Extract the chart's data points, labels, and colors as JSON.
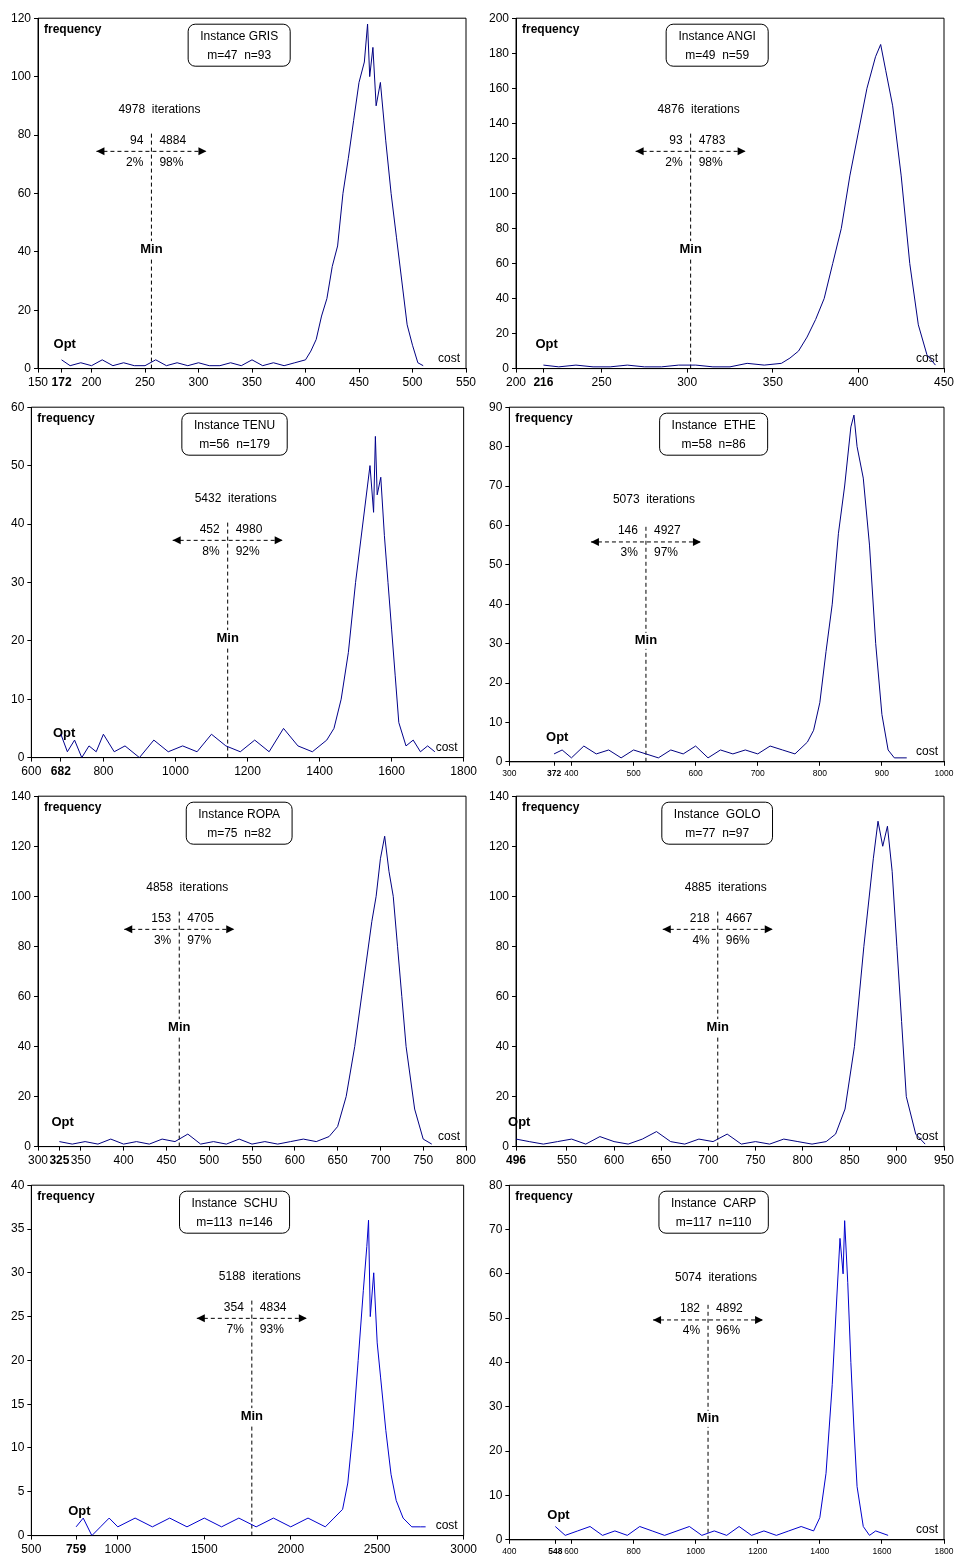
{
  "chart_data": [
    {
      "type": "line",
      "title": "Instance GRIS",
      "subtitle": "m=47  n=93",
      "xlabel": "cost",
      "ylabel": "frequency",
      "color": "#000080",
      "grid": false,
      "legend": false,
      "marker": "none",
      "line_style": "solid",
      "xlim": [
        150,
        550
      ],
      "xticks": [
        150,
        172,
        200,
        250,
        300,
        350,
        400,
        450,
        500,
        550
      ],
      "ylim": [
        0,
        120
      ],
      "yticks": [
        0,
        20,
        40,
        60,
        80,
        100,
        120
      ],
      "x": [
        172,
        180,
        190,
        200,
        210,
        220,
        230,
        240,
        250,
        260,
        270,
        280,
        290,
        300,
        310,
        320,
        330,
        340,
        350,
        360,
        370,
        380,
        390,
        400,
        405,
        410,
        415,
        420,
        425,
        430,
        435,
        440,
        445,
        450,
        455,
        458,
        460,
        463,
        466,
        470,
        475,
        480,
        485,
        490,
        495,
        500,
        505,
        510
      ],
      "values": [
        3,
        1,
        2,
        1,
        3,
        1,
        2,
        1,
        1,
        3,
        1,
        2,
        1,
        2,
        1,
        1,
        2,
        1,
        3,
        1,
        2,
        1,
        2,
        3,
        6,
        10,
        18,
        24,
        35,
        42,
        60,
        72,
        85,
        98,
        105,
        118,
        100,
        110,
        90,
        98,
        78,
        60,
        45,
        30,
        15,
        8,
        2,
        1
      ],
      "ref_lines": [
        {
          "axis": "x",
          "value": 256,
          "label": "Min",
          "line_style": "dashed"
        }
      ],
      "annotations": [
        "4978  iterations",
        "94",
        "4884",
        "2%",
        "98%",
        "Opt"
      ]
    },
    {
      "type": "line",
      "title": "Instance ANGI",
      "subtitle": "m=49  n=59",
      "xlabel": "cost",
      "ylabel": "frequency",
      "color": "#000080",
      "grid": false,
      "legend": false,
      "marker": "none",
      "line_style": "solid",
      "xlim": [
        200,
        450
      ],
      "xticks": [
        200,
        216,
        250,
        300,
        350,
        400,
        450
      ],
      "ylim": [
        0,
        200
      ],
      "yticks": [
        0,
        20,
        40,
        60,
        80,
        100,
        120,
        140,
        160,
        180,
        200
      ],
      "x": [
        216,
        225,
        235,
        245,
        255,
        265,
        275,
        285,
        295,
        305,
        315,
        325,
        335,
        345,
        355,
        360,
        365,
        370,
        375,
        380,
        385,
        390,
        395,
        400,
        405,
        410,
        413,
        416,
        420,
        425,
        430,
        435,
        440,
        445
      ],
      "values": [
        2,
        1,
        2,
        1,
        1,
        2,
        1,
        1,
        2,
        2,
        1,
        1,
        3,
        2,
        3,
        6,
        10,
        18,
        28,
        40,
        60,
        80,
        110,
        135,
        160,
        178,
        185,
        170,
        150,
        110,
        60,
        25,
        8,
        2
      ],
      "ref_lines": [
        {
          "axis": "x",
          "value": 302,
          "label": "Min",
          "line_style": "dashed"
        }
      ],
      "annotations": [
        "4876  iterations",
        "93",
        "4783",
        "2%",
        "98%",
        "Opt"
      ]
    },
    {
      "type": "line",
      "title": "Instance TENU",
      "subtitle": "m=56  n=179",
      "xlabel": "cost",
      "ylabel": "frequency",
      "color": "#00008b",
      "grid": false,
      "legend": false,
      "marker": "none",
      "line_style": "solid",
      "xlim": [
        600,
        1800
      ],
      "xticks": [
        600,
        682,
        800,
        1000,
        1200,
        1400,
        1600,
        1800
      ],
      "ylim": [
        0,
        60
      ],
      "yticks": [
        0,
        10,
        20,
        30,
        40,
        50,
        60
      ],
      "x": [
        682,
        700,
        720,
        740,
        760,
        780,
        800,
        830,
        860,
        900,
        940,
        980,
        1020,
        1060,
        1100,
        1140,
        1180,
        1220,
        1260,
        1300,
        1340,
        1380,
        1420,
        1440,
        1460,
        1480,
        1500,
        1520,
        1540,
        1550,
        1555,
        1560,
        1570,
        1580,
        1590,
        1600,
        1610,
        1620,
        1640,
        1660,
        1680,
        1700,
        1720
      ],
      "values": [
        4,
        1,
        3,
        0,
        2,
        1,
        4,
        1,
        2,
        0,
        3,
        1,
        2,
        1,
        4,
        2,
        1,
        3,
        1,
        5,
        2,
        1,
        3,
        5,
        10,
        18,
        30,
        40,
        50,
        42,
        55,
        45,
        48,
        38,
        30,
        22,
        14,
        6,
        2,
        3,
        1,
        2,
        1
      ],
      "ref_lines": [
        {
          "axis": "x",
          "value": 1145,
          "label": "Min",
          "line_style": "dashed"
        }
      ],
      "annotations": [
        "5432  iterations",
        "452",
        "4980",
        "8%",
        "92%",
        "Opt"
      ]
    },
    {
      "type": "line",
      "title": "Instance  ETHE",
      "subtitle": "m=58  n=86",
      "xlabel": "cost",
      "ylabel": "frequency",
      "color": "#000080",
      "grid": false,
      "legend": false,
      "marker": "none",
      "line_style": "solid",
      "xlim": [
        300,
        1000
      ],
      "xticks": [
        300,
        372,
        400,
        500,
        600,
        700,
        800,
        900,
        1000
      ],
      "ylim": [
        0,
        90
      ],
      "yticks": [
        0,
        10,
        20,
        30,
        40,
        50,
        60,
        70,
        80,
        90
      ],
      "x": [
        372,
        385,
        400,
        420,
        440,
        460,
        480,
        500,
        520,
        540,
        560,
        580,
        600,
        620,
        640,
        660,
        680,
        700,
        720,
        740,
        760,
        780,
        790,
        800,
        810,
        820,
        830,
        840,
        850,
        855,
        860,
        870,
        880,
        890,
        900,
        910,
        920,
        940
      ],
      "values": [
        2,
        3,
        1,
        4,
        2,
        3,
        1,
        3,
        2,
        1,
        3,
        2,
        4,
        1,
        3,
        2,
        3,
        2,
        4,
        3,
        2,
        5,
        8,
        15,
        28,
        40,
        58,
        70,
        85,
        88,
        80,
        72,
        55,
        30,
        12,
        3,
        1,
        1
      ],
      "ref_lines": [
        {
          "axis": "x",
          "value": 520,
          "label": "Min",
          "line_style": "dashed"
        }
      ],
      "annotations": [
        "5073  iterations",
        "146",
        "4927",
        "3%",
        "97%",
        "Opt"
      ]
    },
    {
      "type": "line",
      "title": "Instance ROPA",
      "subtitle": "m=75  n=82",
      "xlabel": "cost",
      "ylabel": "frequency",
      "color": "#000080",
      "grid": false,
      "legend": false,
      "marker": "none",
      "line_style": "solid",
      "xlim": [
        300,
        800
      ],
      "xticks": [
        300,
        325,
        350,
        400,
        450,
        500,
        550,
        600,
        650,
        700,
        750,
        800
      ],
      "ylim": [
        0,
        140
      ],
      "yticks": [
        0,
        20,
        40,
        60,
        80,
        100,
        120,
        140
      ],
      "x": [
        325,
        340,
        355,
        370,
        385,
        400,
        415,
        430,
        445,
        460,
        475,
        490,
        505,
        520,
        535,
        550,
        565,
        580,
        595,
        610,
        625,
        640,
        650,
        660,
        670,
        680,
        690,
        695,
        700,
        705,
        710,
        715,
        720,
        725,
        730,
        740,
        750,
        760
      ],
      "values": [
        2,
        1,
        2,
        1,
        3,
        1,
        2,
        1,
        3,
        2,
        5,
        1,
        2,
        1,
        3,
        1,
        2,
        1,
        2,
        3,
        2,
        4,
        8,
        20,
        40,
        65,
        90,
        100,
        115,
        124,
        110,
        100,
        80,
        60,
        40,
        15,
        3,
        1
      ],
      "ref_lines": [
        {
          "axis": "x",
          "value": 465,
          "label": "Min",
          "line_style": "dashed"
        }
      ],
      "annotations": [
        "4858  iterations",
        "153",
        "4705",
        "3%",
        "97%",
        "Opt"
      ]
    },
    {
      "type": "line",
      "title": "Instance  GOLO",
      "subtitle": "m=77  n=97",
      "xlabel": "cost",
      "ylabel": "frequency",
      "color": "#000080",
      "grid": false,
      "legend": false,
      "marker": "none",
      "line_style": "solid",
      "xlim": [
        496,
        950
      ],
      "xticks": [
        496,
        550,
        600,
        650,
        700,
        750,
        800,
        850,
        900,
        950
      ],
      "ylim": [
        0,
        140
      ],
      "yticks": [
        0,
        20,
        40,
        60,
        80,
        100,
        120,
        140
      ],
      "x": [
        496,
        510,
        525,
        540,
        555,
        570,
        585,
        600,
        615,
        630,
        645,
        660,
        675,
        690,
        705,
        720,
        735,
        750,
        765,
        780,
        795,
        810,
        825,
        835,
        845,
        855,
        865,
        875,
        880,
        885,
        890,
        895,
        900,
        905,
        910,
        920,
        930
      ],
      "values": [
        3,
        2,
        1,
        2,
        3,
        1,
        4,
        2,
        1,
        3,
        6,
        2,
        1,
        3,
        2,
        5,
        1,
        2,
        1,
        3,
        2,
        1,
        2,
        5,
        15,
        40,
        80,
        115,
        130,
        120,
        128,
        110,
        80,
        50,
        20,
        5,
        1
      ],
      "ref_lines": [
        {
          "axis": "x",
          "value": 710,
          "label": "Min",
          "line_style": "dashed"
        }
      ],
      "annotations": [
        "4885  iterations",
        "218",
        "4667",
        "4%",
        "96%",
        "Opt"
      ]
    },
    {
      "type": "line",
      "title": "Instance  SCHU",
      "subtitle": "m=113  n=146",
      "xlabel": "cost",
      "ylabel": "frequency",
      "color": "#0000cd",
      "grid": false,
      "legend": false,
      "marker": "none",
      "line_style": "solid",
      "xlim": [
        500,
        3000
      ],
      "xticks": [
        500,
        759,
        1000,
        1500,
        2000,
        2500,
        3000
      ],
      "ylim": [
        0,
        40
      ],
      "yticks": [
        0,
        5,
        10,
        15,
        20,
        25,
        30,
        35,
        40
      ],
      "x": [
        759,
        800,
        850,
        900,
        950,
        1000,
        1100,
        1200,
        1300,
        1400,
        1500,
        1600,
        1700,
        1800,
        1900,
        2000,
        2100,
        2200,
        2250,
        2300,
        2330,
        2360,
        2390,
        2420,
        2440,
        2450,
        2460,
        2480,
        2500,
        2520,
        2550,
        2580,
        2610,
        2650,
        2700,
        2750,
        2780
      ],
      "values": [
        1,
        2,
        0,
        1,
        2,
        1,
        2,
        1,
        2,
        1,
        2,
        1,
        2,
        1,
        2,
        1,
        2,
        1,
        2,
        3,
        6,
        12,
        20,
        28,
        33,
        36,
        25,
        30,
        22,
        18,
        12,
        7,
        4,
        2,
        1,
        1,
        1
      ],
      "ref_lines": [
        {
          "axis": "x",
          "value": 1775,
          "label": "Min",
          "line_style": "dashed"
        }
      ],
      "annotations": [
        "5188  iterations",
        "354",
        "4834",
        "7%",
        "93%",
        "Opt"
      ]
    },
    {
      "type": "line",
      "title": "Instance  CARP",
      "subtitle": "m=117  n=110",
      "xlabel": "cost",
      "ylabel": "frequency",
      "color": "#0000cd",
      "grid": false,
      "legend": false,
      "marker": "none",
      "line_style": "solid",
      "xlim": [
        400,
        1800
      ],
      "xticks": [
        400,
        548,
        600,
        800,
        1000,
        1200,
        1400,
        1600,
        1800
      ],
      "ylim": [
        0,
        80
      ],
      "yticks": [
        0,
        10,
        20,
        30,
        40,
        50,
        60,
        70,
        80
      ],
      "x": [
        548,
        580,
        620,
        660,
        700,
        740,
        780,
        820,
        860,
        900,
        940,
        980,
        1020,
        1060,
        1100,
        1140,
        1180,
        1220,
        1260,
        1300,
        1340,
        1380,
        1400,
        1420,
        1440,
        1455,
        1465,
        1475,
        1480,
        1490,
        1500,
        1510,
        1520,
        1540,
        1560,
        1580,
        1620
      ],
      "values": [
        3,
        1,
        2,
        3,
        1,
        2,
        1,
        3,
        2,
        1,
        2,
        3,
        1,
        2,
        1,
        3,
        1,
        2,
        1,
        2,
        3,
        2,
        5,
        15,
        35,
        55,
        68,
        60,
        72,
        58,
        40,
        25,
        12,
        3,
        1,
        2,
        1
      ],
      "ref_lines": [
        {
          "axis": "x",
          "value": 1040,
          "label": "Min",
          "line_style": "dashed"
        }
      ],
      "annotations": [
        "5074  iterations",
        "182",
        "4892",
        "4%",
        "96%",
        "Opt"
      ]
    }
  ]
}
